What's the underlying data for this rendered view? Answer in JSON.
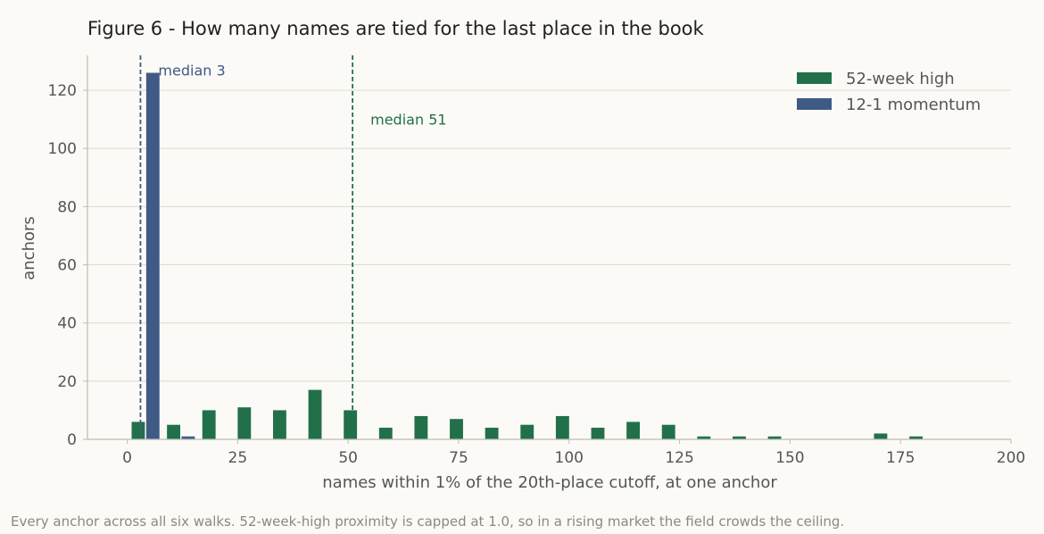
{
  "title": "Figure 6 - How many names are tied for the last place in the book",
  "caption": "Every anchor across all six walks. 52-week-high proximity is capped at 1.0, so in a rising market the field crowds the ceiling.",
  "chart_data": {
    "type": "bar",
    "xlabel": "names within 1% of the 20th-place cutoff, at one anchor",
    "ylabel": "anchors",
    "xlim": [
      -9,
      200
    ],
    "ylim": [
      0,
      132
    ],
    "xticks": [
      0,
      25,
      50,
      75,
      100,
      125,
      150,
      175,
      200
    ],
    "yticks": [
      0,
      20,
      40,
      60,
      80,
      100,
      120
    ],
    "grid": "horizontal",
    "legend_position": "top-right",
    "bin_width": 8,
    "series": [
      {
        "name": "52-week high",
        "color": "#22704a",
        "bins": [
          {
            "x": 2.5,
            "value": 6
          },
          {
            "x": 10.5,
            "value": 5
          },
          {
            "x": 18.5,
            "value": 10
          },
          {
            "x": 26.5,
            "value": 11
          },
          {
            "x": 34.5,
            "value": 10
          },
          {
            "x": 42.5,
            "value": 17
          },
          {
            "x": 50.5,
            "value": 10
          },
          {
            "x": 58.5,
            "value": 4
          },
          {
            "x": 66.5,
            "value": 8
          },
          {
            "x": 74.5,
            "value": 7
          },
          {
            "x": 82.5,
            "value": 4
          },
          {
            "x": 90.5,
            "value": 5
          },
          {
            "x": 98.5,
            "value": 8
          },
          {
            "x": 106.5,
            "value": 4
          },
          {
            "x": 114.5,
            "value": 6
          },
          {
            "x": 122.5,
            "value": 5
          },
          {
            "x": 130.5,
            "value": 1
          },
          {
            "x": 138.5,
            "value": 1
          },
          {
            "x": 146.5,
            "value": 1
          },
          {
            "x": 170.5,
            "value": 2
          },
          {
            "x": 178.5,
            "value": 1
          }
        ]
      },
      {
        "name": "12-1 momentum",
        "color": "#3f5b85",
        "bins": [
          {
            "x": 5.8,
            "value": 126
          },
          {
            "x": 13.8,
            "value": 1
          }
        ]
      }
    ],
    "annotations": [
      {
        "type": "vline",
        "x": 3,
        "color": "#3f5b85",
        "label": "median 3",
        "label_y": 127
      },
      {
        "type": "vline",
        "x": 51,
        "color": "#22704a",
        "label": "median 51",
        "label_y": 110
      }
    ]
  }
}
